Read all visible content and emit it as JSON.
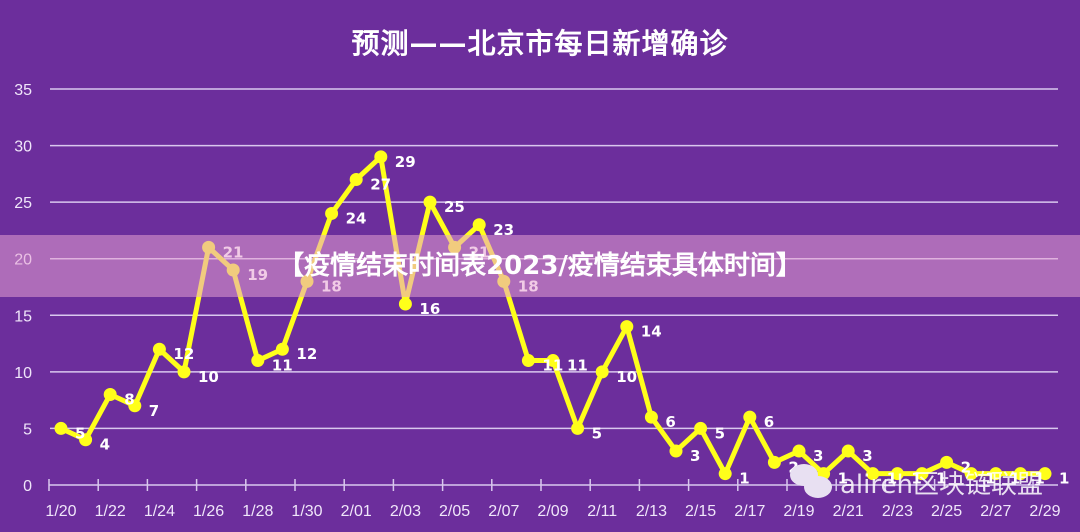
{
  "title": "预测——北京市每日新增确诊",
  "banner": "【疫情结束时间表2023/疫情结束具体时间】",
  "watermark": "alireh区块链联盟",
  "colors": {
    "background": "#6c2e9c",
    "line": "#ffff1a",
    "grid": "#d9c8ee",
    "text": "#ffffff"
  },
  "chart_data": {
    "type": "line",
    "title": "预测——北京市每日新增确诊",
    "xlabel": "",
    "ylabel": "",
    "ylim": [
      0,
      35
    ],
    "yticks": [
      0,
      5,
      10,
      15,
      20,
      25,
      30,
      35
    ],
    "grid": true,
    "legend": null,
    "x": [
      "1/20",
      "1/21",
      "1/22",
      "1/23",
      "1/24",
      "1/25",
      "1/26",
      "1/27",
      "1/28",
      "1/29",
      "1/30",
      "1/31",
      "2/01",
      "2/02",
      "2/03",
      "2/04",
      "2/05",
      "2/06",
      "2/07",
      "2/08",
      "2/09",
      "2/10",
      "2/11",
      "2/12",
      "2/13",
      "2/14",
      "2/15",
      "2/16",
      "2/17",
      "2/18",
      "2/19",
      "2/20",
      "2/21",
      "2/22",
      "2/23",
      "2/24",
      "2/25",
      "2/26",
      "2/27",
      "2/28",
      "2/29"
    ],
    "xtick_labels": [
      "1/20",
      "1/22",
      "1/24",
      "1/26",
      "1/28",
      "1/30",
      "2/01",
      "2/03",
      "2/05",
      "2/07",
      "2/09",
      "2/11",
      "2/13",
      "2/15",
      "2/17",
      "2/19",
      "2/21",
      "2/23",
      "2/25",
      "2/27",
      "2/29"
    ],
    "series": [
      {
        "name": "每日新增确诊",
        "values": [
          5,
          4,
          8,
          7,
          12,
          10,
          21,
          19,
          11,
          12,
          18,
          24,
          27,
          29,
          16,
          25,
          21,
          23,
          18,
          11,
          11,
          5,
          10,
          14,
          6,
          3,
          5,
          1,
          6,
          2,
          3,
          1,
          3,
          1,
          1,
          1,
          2,
          1,
          1,
          1,
          1
        ]
      }
    ]
  }
}
